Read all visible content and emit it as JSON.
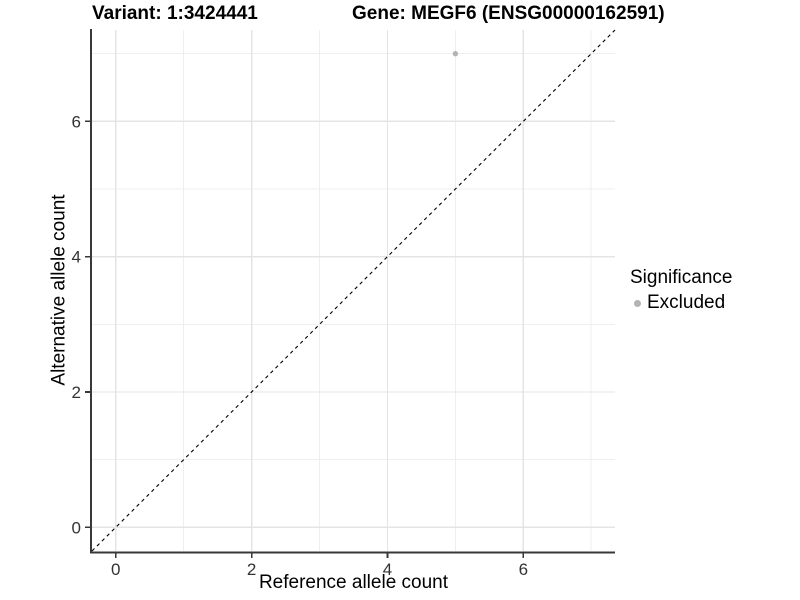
{
  "chart_data": {
    "type": "scatter",
    "title_left": "Variant: 1:3424441",
    "title_right": "Gene: MEGF6 (ENSG00000162591)",
    "xlabel": "Reference allele count",
    "ylabel": "Alternative allele count",
    "xlim": [
      -0.35,
      7.35
    ],
    "ylim": [
      -0.35,
      7.35
    ],
    "x_ticks": [
      0,
      2,
      4,
      6
    ],
    "x_tick_labels": [
      "0",
      "2",
      "4",
      "6"
    ],
    "y_ticks": [
      0,
      2,
      4,
      6
    ],
    "y_tick_labels": [
      "0",
      "2",
      "4",
      "6"
    ],
    "x_minor_ticks": [
      1,
      3,
      5,
      7
    ],
    "y_minor_ticks": [
      1,
      3,
      5,
      7
    ],
    "grid": "major+minor",
    "series": [
      {
        "name": "Excluded",
        "color": "#b3b3b3",
        "point_radius": 2.7,
        "points": [
          [
            5,
            7
          ]
        ]
      }
    ],
    "identity_line": {
      "slope": 1,
      "intercept": 0,
      "style": "dashed",
      "color": "#000000",
      "from": -0.35,
      "to": 7.35
    },
    "legend": {
      "title": "Significance",
      "position": "right",
      "entries": [
        {
          "label": "Excluded",
          "color": "#b3b3b3"
        }
      ]
    }
  },
  "colors": {
    "background": "#ffffff",
    "grid_major": "#e4e4e4",
    "grid_minor": "#efefef",
    "axis": "#383838",
    "tick_text": "#333333",
    "title_text": "#000000",
    "point": "#b3b3b3"
  }
}
